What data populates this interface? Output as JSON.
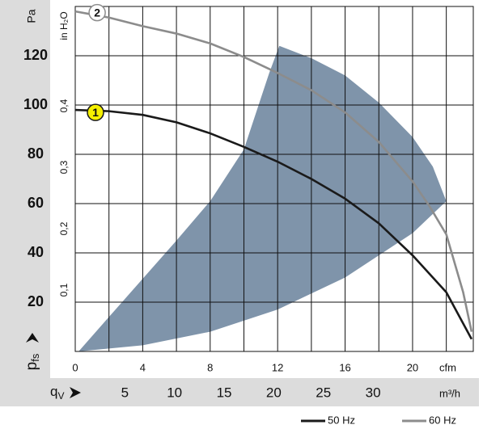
{
  "chart_data": {
    "type": "line",
    "y_title": "Pa",
    "y2_title": "in H₂O",
    "y_symbol": "p",
    "y_symbol_sub": "fs",
    "x_unit": "cfm",
    "x2_unit": "m³/h",
    "x2_symbol": "q",
    "x2_symbol_sub": "V",
    "xlim": [
      0,
      23.6
    ],
    "xticks": [
      0,
      4,
      8,
      12,
      16,
      20
    ],
    "xgrid": [
      2,
      4,
      6,
      8,
      10,
      12,
      14,
      16,
      18,
      20,
      22
    ],
    "x2lim": [
      0,
      40.1
    ],
    "x2ticks": [
      5,
      10,
      15,
      20,
      25,
      30
    ],
    "ylim": [
      0,
      140
    ],
    "yticks": [
      20,
      40,
      60,
      80,
      100,
      120
    ],
    "y2lim": [
      0,
      0.562
    ],
    "y2ticks": [
      {
        "value": 0.1,
        "label": "0,1"
      },
      {
        "value": 0.2,
        "label": "0,2"
      },
      {
        "value": 0.3,
        "label": "0,3"
      },
      {
        "value": 0.4,
        "label": "0,4"
      }
    ],
    "grid": true,
    "region": {
      "color": "#7f94aa",
      "x": [
        0.2,
        4,
        8,
        12,
        16,
        20,
        22,
        21.2,
        20,
        18,
        16,
        14,
        12.1,
        11.5,
        10,
        8,
        6,
        4,
        2
      ],
      "y": [
        0,
        2.5,
        8,
        17,
        30,
        48,
        61,
        75,
        87,
        101,
        112,
        119,
        124,
        113,
        82,
        61,
        45,
        29.5,
        14
      ]
    },
    "series": [
      {
        "name": "50 Hz",
        "color": "#1a1a1a",
        "marker_label": "1",
        "marker_fill": "#f5f000",
        "marker_at": [
          1.2,
          97
        ],
        "x": [
          0,
          2,
          4,
          6,
          8,
          10,
          12,
          14,
          16,
          18,
          20,
          22,
          23.5
        ],
        "values": [
          98,
          97.5,
          96,
          93,
          88.5,
          83,
          77,
          70,
          62,
          52,
          39,
          24,
          5
        ]
      },
      {
        "name": "60 Hz",
        "color": "#8c8c8c",
        "marker_label": "2",
        "marker_fill": "#ffffff",
        "marker_at": [
          1.3,
          137.5
        ],
        "x": [
          0,
          2,
          4,
          6,
          8,
          10,
          12,
          14,
          16,
          18,
          20,
          21,
          22,
          23,
          23.5
        ],
        "values": [
          138,
          135.5,
          132,
          129,
          125,
          119.5,
          113,
          106,
          97,
          85,
          69,
          59,
          47.5,
          24,
          8
        ]
      }
    ]
  }
}
